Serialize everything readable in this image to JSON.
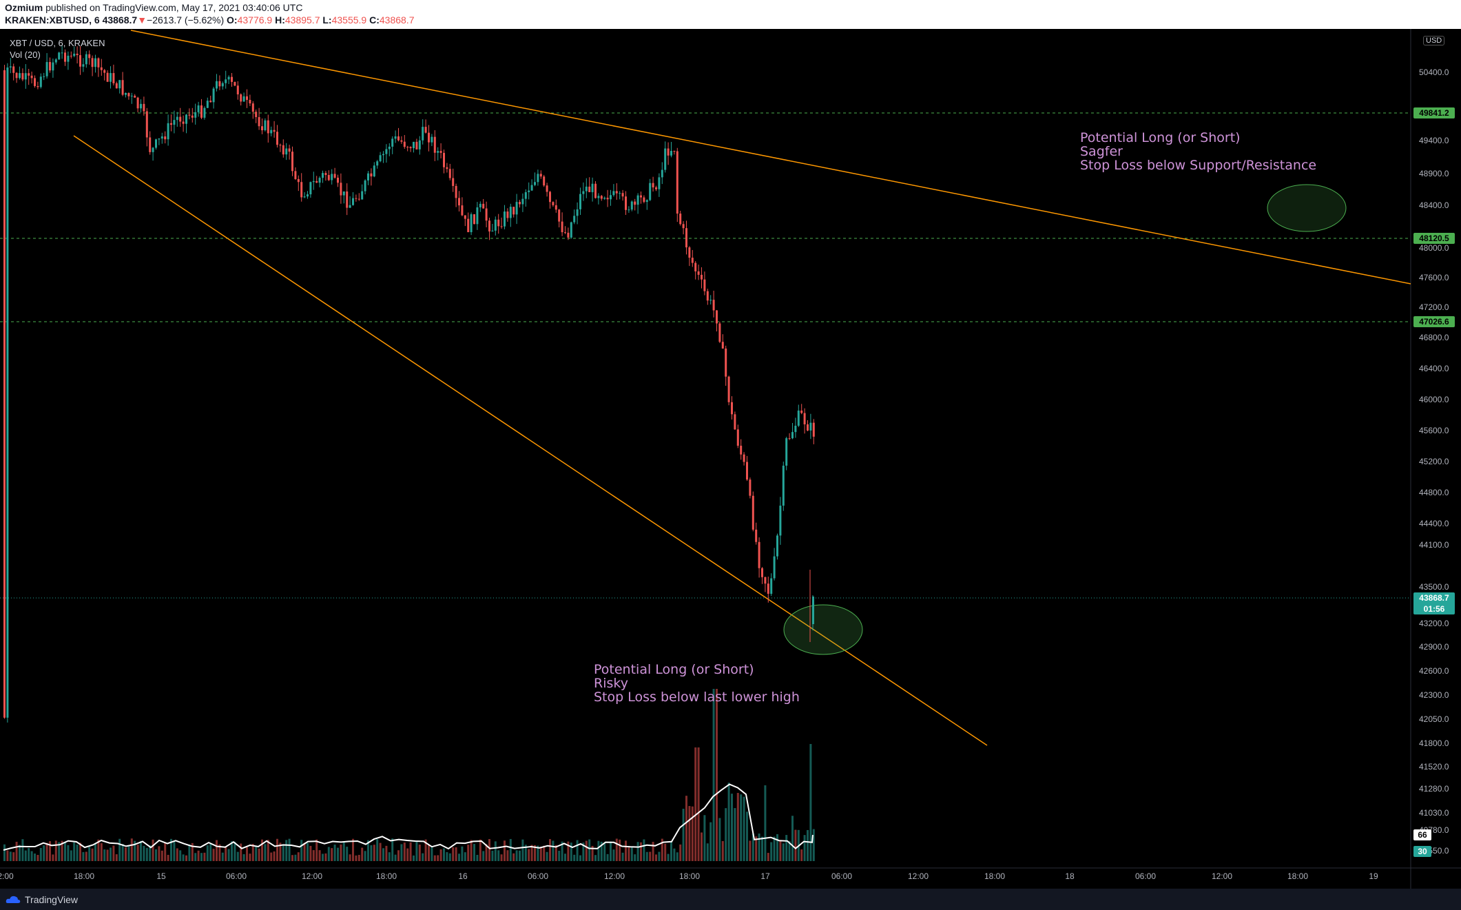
{
  "header": {
    "author": "Ozmium",
    "published": "published on TradingView.com, May 17, 2021 03:40:06 UTC",
    "symbol": "KRAKEN:XBTUSD, 6",
    "last": "43868.7",
    "change_arrow": "▼",
    "change": "−2613.7 (−5.62%)",
    "o_label": "O:",
    "open": "43776.9",
    "h_label": "H:",
    "high": "43895.7",
    "l_label": "L:",
    "low": "43555.9",
    "c_label": "C:",
    "close": "43868.7"
  },
  "legend": {
    "series": "XBT / USD, 6, KRAKEN",
    "volume": "Vol (20)"
  },
  "price_axis": {
    "currency_button": "USD",
    "ticks": [
      {
        "value": "50400.0",
        "price": 50400
      },
      {
        "value": "49400.0",
        "price": 49400
      },
      {
        "value": "48900.0",
        "price": 48900
      },
      {
        "value": "48400.0",
        "price": 48400
      },
      {
        "value": "48000.0",
        "price": 48000
      },
      {
        "value": "47600.0",
        "price": 47600
      },
      {
        "value": "47200.0",
        "price": 47200
      },
      {
        "value": "46800.0",
        "price": 46800
      },
      {
        "value": "46400.0",
        "price": 46400
      },
      {
        "value": "46000.0",
        "price": 46000
      },
      {
        "value": "45600.0",
        "price": 45600
      },
      {
        "value": "45200.0",
        "price": 45200
      },
      {
        "value": "44800.0",
        "price": 44800
      },
      {
        "value": "44400.0",
        "price": 44400
      },
      {
        "value": "44100.0",
        "price": 44100
      },
      {
        "value": "43500.0",
        "price": 43500
      },
      {
        "value": "43200.0",
        "price": 43200
      },
      {
        "value": "42900.0",
        "price": 42900
      },
      {
        "value": "42600.0",
        "price": 42600
      },
      {
        "value": "42300.0",
        "price": 42300
      },
      {
        "value": "42050.0",
        "price": 42050
      },
      {
        "value": "41800.0",
        "price": 41800
      },
      {
        "value": "41520.0",
        "price": 41520
      },
      {
        "value": "41280.0",
        "price": 41280
      },
      {
        "value": "41030.0",
        "price": 41030
      },
      {
        "value": "40780.0",
        "price": 40780
      },
      {
        "value": "40550.0",
        "price": 40550
      }
    ],
    "levels": [
      {
        "label": "49841.2",
        "price": 49841.2
      },
      {
        "label": "48120.5",
        "price": 48120.5
      },
      {
        "label": "47026.6",
        "price": 47026.6
      }
    ],
    "current_price": "43868.7",
    "countdown": "01:56",
    "vol_tag": "66",
    "vol_ma_tag": "30"
  },
  "time_axis": {
    "labels": [
      "2:00",
      "18:00",
      "15",
      "06:00",
      "12:00",
      "18:00",
      "16",
      "06:00",
      "12:00",
      "18:00",
      "17",
      "06:00",
      "12:00",
      "18:00",
      "18",
      "06:00",
      "12:00",
      "18:00",
      "19"
    ]
  },
  "annotations": {
    "right": [
      "Potential Long (or Short)",
      "Sagfer",
      "Stop Loss below Support/Resistance"
    ],
    "bottom": [
      "Potential Long (or Short)",
      "Risky",
      "Stop Loss below last lower high"
    ]
  },
  "footer": {
    "brand": "TradingView"
  },
  "colors": {
    "background": "#000000",
    "up": "#26a69a",
    "down": "#ef5350",
    "trendline": "#ff9800",
    "level": "#4caf50",
    "annotation": "#ce93d8"
  }
}
